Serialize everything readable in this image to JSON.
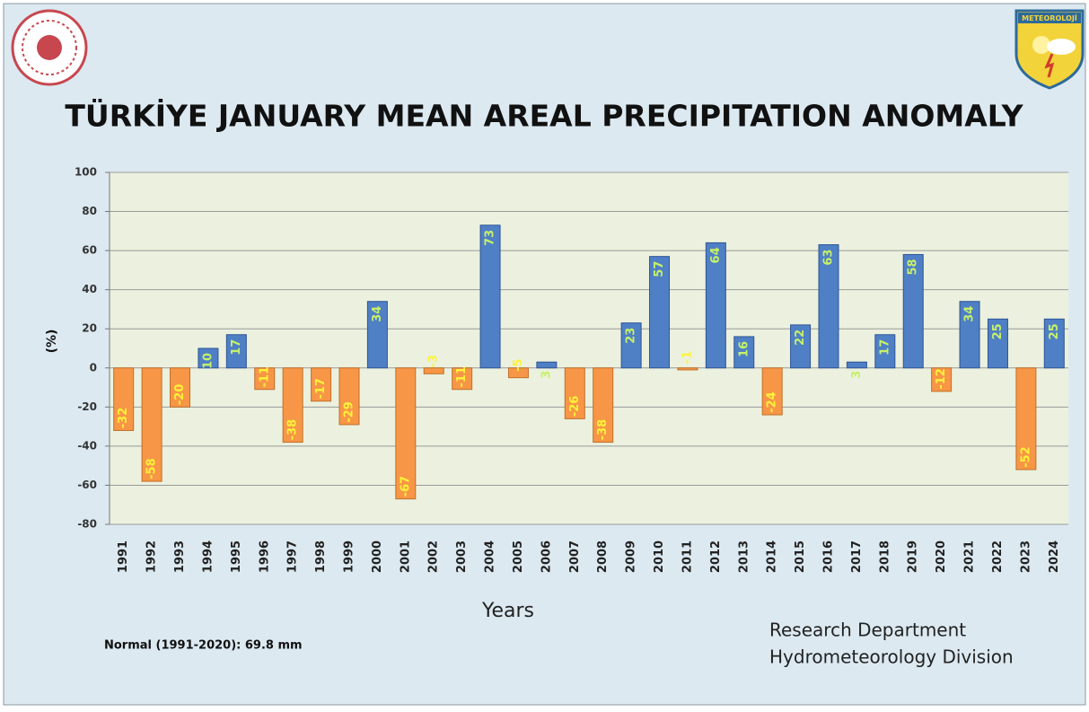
{
  "chart_data": {
    "type": "bar",
    "title": "TÜRKİYE JANUARY MEAN AREAL PRECIPITATION ANOMALY",
    "y_label": "(%)",
    "x_label": "Years",
    "note": "Normal (1991-2020):  69.8 mm",
    "credits": [
      "Research Department",
      "Hydrometeorology Division"
    ],
    "logo_text": "METEOROLOJİ",
    "categories": [
      "1991",
      "1992",
      "1993",
      "1994",
      "1995",
      "1996",
      "1997",
      "1998",
      "1999",
      "2000",
      "2001",
      "2002",
      "2003",
      "2004",
      "2005",
      "2006",
      "2007",
      "2008",
      "2009",
      "2010",
      "2011",
      "2012",
      "2013",
      "2014",
      "2015",
      "2016",
      "2017",
      "2018",
      "2019",
      "2020",
      "2021",
      "2022",
      "2023",
      "2024"
    ],
    "values": [
      -32,
      -58,
      -20,
      10,
      17,
      -11,
      -38,
      -17,
      -29,
      34,
      -67,
      -3,
      -11,
      73,
      -5,
      3,
      -26,
      -38,
      23,
      57,
      -1,
      64,
      16,
      -24,
      22,
      63,
      3,
      17,
      58,
      -12,
      34,
      25,
      -52,
      25
    ],
    "positive_color": "#4f7fc4",
    "negative_color": "#f79646",
    "ylim": [
      -80,
      100
    ],
    "yticks": [
      -80,
      -60,
      -40,
      -20,
      0,
      20,
      40,
      60,
      80,
      100
    ],
    "grid": true
  }
}
